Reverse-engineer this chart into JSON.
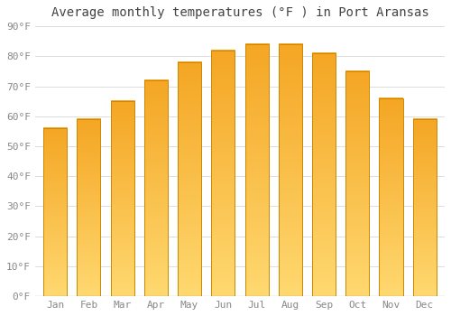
{
  "months": [
    "Jan",
    "Feb",
    "Mar",
    "Apr",
    "May",
    "Jun",
    "Jul",
    "Aug",
    "Sep",
    "Oct",
    "Nov",
    "Dec"
  ],
  "values": [
    56,
    59,
    65,
    72,
    78,
    82,
    84,
    84,
    81,
    75,
    66,
    59
  ],
  "title": "Average monthly temperatures (°F ) in Port Aransas",
  "ytick_labels": [
    "0°F",
    "10°F",
    "20°F",
    "30°F",
    "40°F",
    "50°F",
    "60°F",
    "70°F",
    "80°F",
    "90°F"
  ],
  "ytick_values": [
    0,
    10,
    20,
    30,
    40,
    50,
    60,
    70,
    80,
    90
  ],
  "ylim": [
    0,
    90
  ],
  "background_color": "#ffffff",
  "grid_color": "#dddddd",
  "title_fontsize": 10,
  "tick_fontsize": 8,
  "bar_color_top": "#F5A623",
  "bar_color_bottom": "#FFD970",
  "bar_edge_color": "#CC8800",
  "title_color": "#444444",
  "tick_label_color": "#888888",
  "bar_width": 0.7
}
